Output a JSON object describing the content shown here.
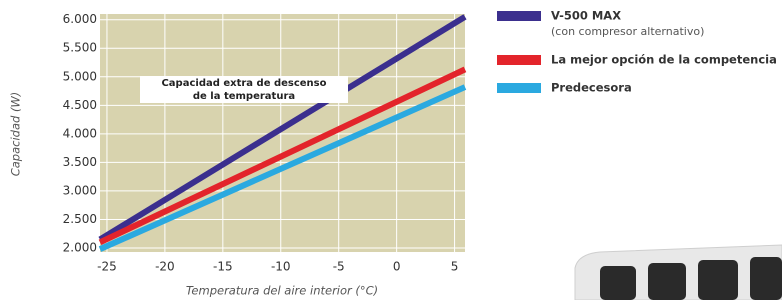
{
  "chart_data": {
    "type": "line",
    "x_label": "Temperatura del aire interior (°C)",
    "y_label": "Capacidad (W)",
    "annotation": [
      "Capacidad extra de descenso",
      "de la temperatura"
    ],
    "x": [
      -25.6,
      5.9
    ],
    "series": [
      {
        "name": "V-500 MAX",
        "legend_note": "(con compresor alternativo)",
        "color": "#3b2f8e",
        "values": [
          2150,
          6050
        ]
      },
      {
        "name": "La mejor opción de la competencia",
        "color": "#e3242b",
        "values": [
          2100,
          5130
        ]
      },
      {
        "name": "Predecesora",
        "color": "#2aa9e0",
        "values": [
          1980,
          4820
        ]
      }
    ],
    "xlim": [
      -25.6,
      5.9
    ],
    "xticks": [
      -25,
      -20,
      -15,
      -10,
      -5,
      0,
      5
    ],
    "ylim": [
      1930,
      6100
    ],
    "yticks": [
      {
        "value": 2000,
        "label": "2.000"
      },
      {
        "value": 2500,
        "label": "2.500"
      },
      {
        "value": 3000,
        "label": "3.000"
      },
      {
        "value": 3500,
        "label": "3.500"
      },
      {
        "value": 4000,
        "label": "4.000"
      },
      {
        "value": 4500,
        "label": "4.500"
      },
      {
        "value": 5000,
        "label": "5.000"
      },
      {
        "value": 5500,
        "label": "5.500"
      },
      {
        "value": 6000,
        "label": "6.000"
      }
    ],
    "grid": true,
    "background": "#d8d3ae"
  }
}
